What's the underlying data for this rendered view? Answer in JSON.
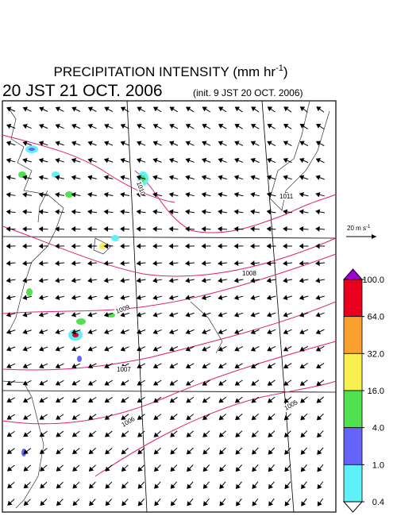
{
  "title": {
    "main": "PRECIPITATION INTENSITY (mm hr",
    "sup": "-1",
    "end": ")"
  },
  "valid_time": "20 JST 21 OCT. 2006",
  "init_time": "(init. 9 JST 20 OCT. 2006)",
  "reference_vector": {
    "label": "20 m s",
    "sup": "-1"
  },
  "colorbar": {
    "levels": [
      {
        "value": 100,
        "label": "100.0"
      },
      {
        "value": 64,
        "label": "64.0"
      },
      {
        "value": 32,
        "label": "32.0"
      },
      {
        "value": 16,
        "label": "16.0"
      },
      {
        "value": 4,
        "label": "4.0"
      },
      {
        "value": 1,
        "label": "1.0"
      },
      {
        "value": 0.4,
        "label": "0.4"
      }
    ],
    "colors": [
      "#e8001e",
      "#f8a030",
      "#f8f050",
      "#50e050",
      "#6464f8",
      "#60f0f8"
    ],
    "over_color": "#a000d8",
    "under_color": "#ffffff"
  },
  "contour_labels": [
    "1010",
    "1011",
    "1008",
    "1009",
    "1007",
    "1006",
    "1005"
  ]
}
